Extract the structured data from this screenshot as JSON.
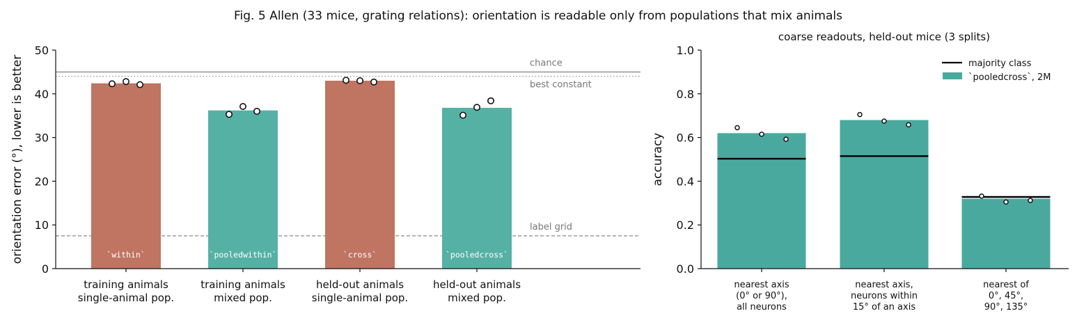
{
  "figure": {
    "title": "Fig. 5  Allen (33 mice, grating relations): orientation is readable only from populations that mix animals"
  },
  "chart_data": [
    {
      "type": "bar",
      "title": "",
      "ylabel": "orientation error (°), lower is better",
      "ylim": [
        0,
        50
      ],
      "yticks": [
        0,
        10,
        20,
        30,
        40,
        50
      ],
      "categories": [
        "training animals\nsingle-animal pop.",
        "training animals\nmixed pop.",
        "held-out animals\nsingle-animal pop.",
        "held-out animals\nmixed pop."
      ],
      "bar_labels": [
        "`within`",
        "`pooledwithin`",
        "`cross`",
        "`pooledcross`"
      ],
      "values": [
        42.4,
        36.2,
        43.0,
        36.8
      ],
      "bar_colors": [
        "#c07462",
        "#56b1a5",
        "#c07462",
        "#56b1a5"
      ],
      "points": [
        [
          42.3,
          42.8,
          42.1
        ],
        [
          35.3,
          37.1,
          36.0
        ],
        [
          43.1,
          43.0,
          42.7
        ],
        [
          35.1,
          36.9,
          38.4
        ]
      ],
      "reference_lines": [
        {
          "label": "chance",
          "value": 45.0,
          "style": "solid",
          "color": "#9a9a9a"
        },
        {
          "label": "best constant",
          "value": 44.0,
          "style": "dotted",
          "color": "#9a9a9a"
        },
        {
          "label": "label grid",
          "value": 7.5,
          "style": "dashed",
          "color": "#8a8a8a"
        }
      ],
      "grid": false
    },
    {
      "type": "bar",
      "title": "coarse readouts, held-out mice (3 splits)",
      "ylabel": "accuracy",
      "ylim": [
        0,
        1.0
      ],
      "yticks": [
        "0.0",
        "0.2",
        "0.4",
        "0.6",
        "0.8",
        "1.0"
      ],
      "categories": [
        "nearest axis\n(0° or 90°),\nall neurons",
        "nearest axis,\nneurons within\n15° of an axis",
        "nearest of\n0°, 45°,\n90°, 135°"
      ],
      "values": [
        0.62,
        0.68,
        0.32
      ],
      "bar_color": "#4aa99e",
      "points": [
        [
          0.645,
          0.615,
          0.592
        ],
        [
          0.705,
          0.675,
          0.658
        ],
        [
          0.332,
          0.305,
          0.312
        ]
      ],
      "majority_class": [
        0.503,
        0.515,
        0.328
      ],
      "legend": {
        "placement": "top-right",
        "entries": [
          {
            "label": "majority class",
            "kind": "line",
            "color": "#000000"
          },
          {
            "label": "`pooledcross`, 2M",
            "kind": "patch",
            "color": "#4aa99e"
          }
        ]
      },
      "grid": false
    }
  ]
}
